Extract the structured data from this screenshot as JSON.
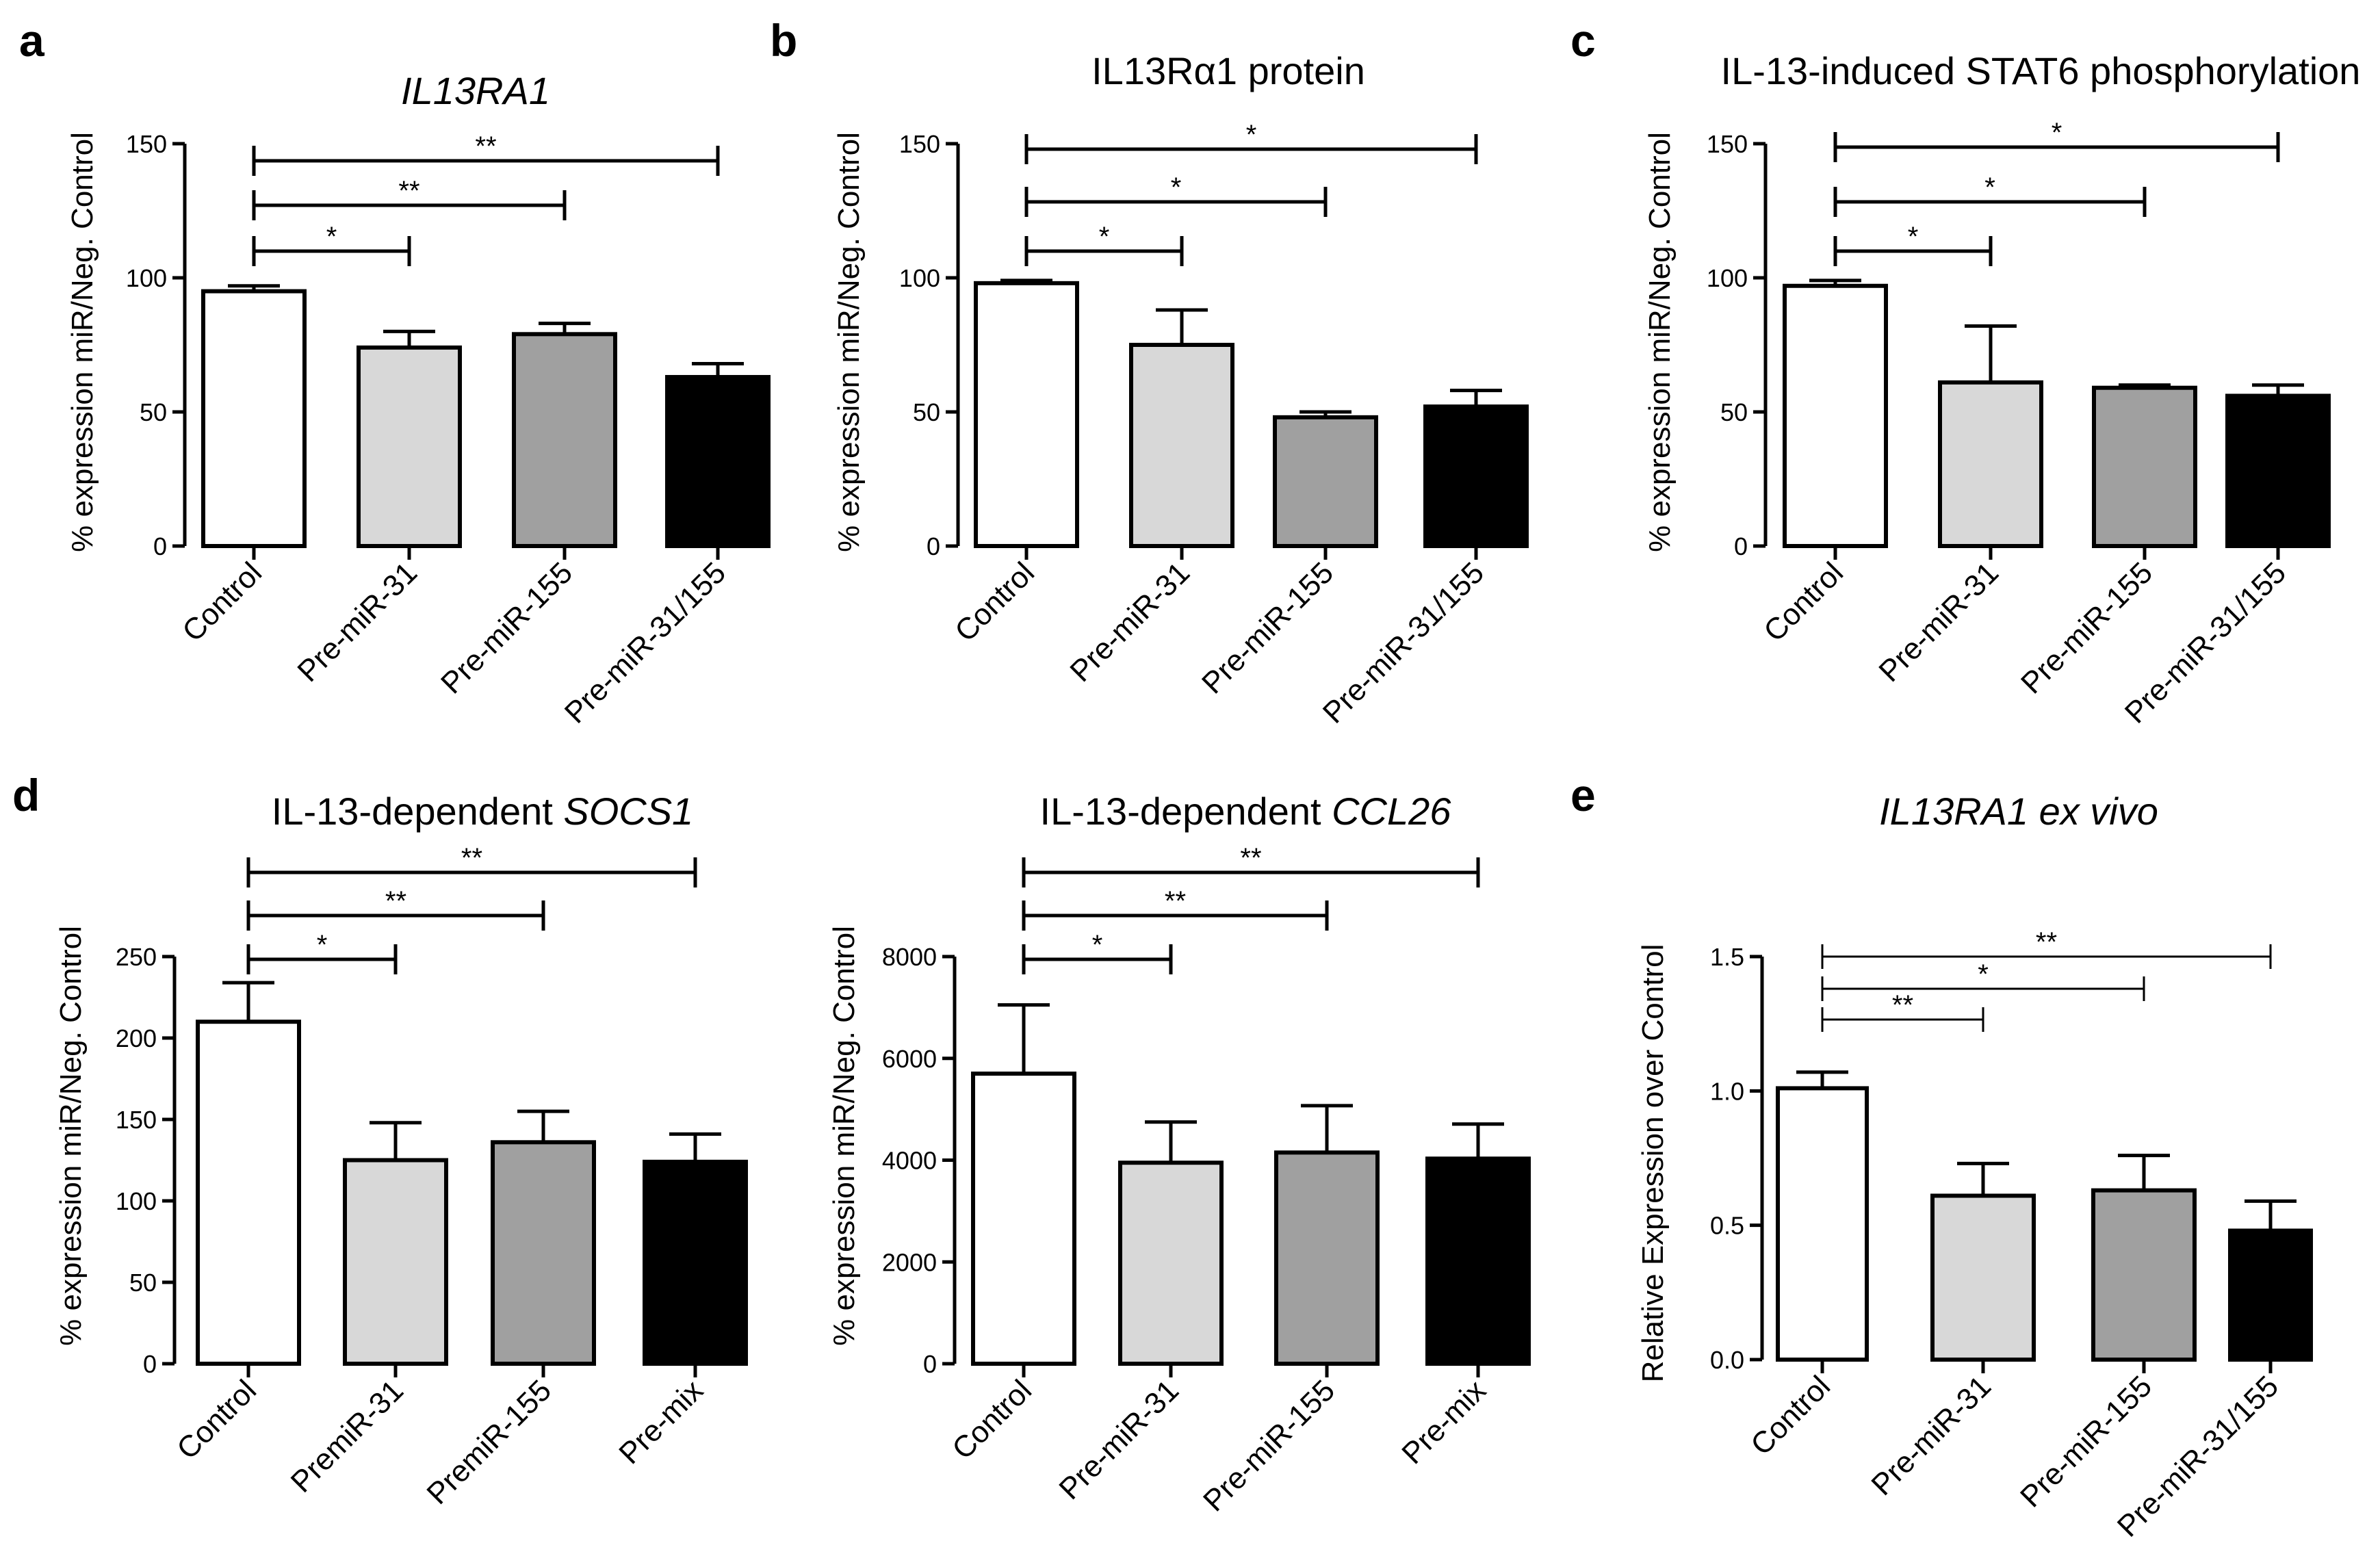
{
  "chart_data": [
    {
      "panel": "a",
      "type": "bar",
      "title": "IL13RA1",
      "title_parts": [
        {
          "text": "IL13RA1",
          "italic": true
        }
      ],
      "ylabel": "% expression miR/Neg. Control",
      "categories": [
        "Control",
        "Pre-miR-31",
        "Pre-miR-155",
        "Pre-miR-31/155"
      ],
      "values": [
        95,
        74,
        79,
        63
      ],
      "errors": [
        2,
        6,
        4,
        5
      ],
      "fills": [
        "#ffffff",
        "#d8d8d8",
        "#a0a0a0",
        "#000000"
      ],
      "ylim": [
        0,
        150
      ],
      "yticks": [
        0,
        50,
        100,
        150
      ],
      "tick_labels": [
        "0",
        "50",
        "100",
        "150"
      ],
      "significance": [
        {
          "from": 0,
          "to": 1,
          "label": "*"
        },
        {
          "from": 0,
          "to": 2,
          "label": "**"
        },
        {
          "from": 0,
          "to": 3,
          "label": "**"
        }
      ]
    },
    {
      "panel": "b",
      "type": "bar",
      "title": "IL13Rα1 protein",
      "title_parts": [
        {
          "text": "IL13Rα1 protein",
          "italic": false
        }
      ],
      "ylabel": "% expression miR/Neg. Control",
      "categories": [
        "Control",
        "Pre-miR-31",
        "Pre-miR-155",
        "Pre-miR-31/155"
      ],
      "values": [
        98,
        75,
        48,
        52
      ],
      "errors": [
        1,
        13,
        2,
        6
      ],
      "fills": [
        "#ffffff",
        "#d8d8d8",
        "#a0a0a0",
        "#000000"
      ],
      "ylim": [
        0,
        150
      ],
      "yticks": [
        0,
        50,
        100,
        150
      ],
      "tick_labels": [
        "0",
        "50",
        "100",
        "150"
      ],
      "significance": [
        {
          "from": 0,
          "to": 1,
          "label": "*"
        },
        {
          "from": 0,
          "to": 2,
          "label": "*"
        },
        {
          "from": 0,
          "to": 3,
          "label": "*"
        }
      ]
    },
    {
      "panel": "c",
      "type": "bar",
      "title": "IL-13-induced STAT6 phosphorylation",
      "title_parts": [
        {
          "text": "IL-13-induced STAT6 phosphorylation",
          "italic": false
        }
      ],
      "ylabel": "% expression miR/Neg. Control",
      "categories": [
        "Control",
        "Pre-miR-31",
        "Pre-miR-155",
        "Pre-miR-31/155"
      ],
      "values": [
        97,
        61,
        59,
        56
      ],
      "errors": [
        2,
        21,
        1,
        4
      ],
      "fills": [
        "#ffffff",
        "#d8d8d8",
        "#a0a0a0",
        "#000000"
      ],
      "ylim": [
        0,
        150
      ],
      "yticks": [
        0,
        50,
        100,
        150
      ],
      "tick_labels": [
        "0",
        "50",
        "100",
        "150"
      ],
      "significance": [
        {
          "from": 0,
          "to": 1,
          "label": "*"
        },
        {
          "from": 0,
          "to": 2,
          "label": "*"
        },
        {
          "from": 0,
          "to": 3,
          "label": "*"
        }
      ]
    },
    {
      "panel": "d",
      "type": "bar",
      "title": "IL-13-dependent SOCS1",
      "title_parts": [
        {
          "text": "IL-13-dependent ",
          "italic": false
        },
        {
          "text": "SOCS1",
          "italic": true
        }
      ],
      "ylabel": "% expression miR/Neg. Control",
      "categories": [
        "Control",
        "PremiR-31",
        "PremiR-155",
        "Pre-mix"
      ],
      "values": [
        210,
        125,
        136,
        124
      ],
      "errors": [
        24,
        23,
        19,
        17
      ],
      "fills": [
        "#ffffff",
        "#d8d8d8",
        "#a0a0a0",
        "#000000"
      ],
      "ylim": [
        0,
        250
      ],
      "yticks": [
        0,
        50,
        100,
        150,
        200,
        250
      ],
      "tick_labels": [
        "0",
        "50",
        "100",
        "150",
        "200",
        "250"
      ],
      "significance": [
        {
          "from": 0,
          "to": 1,
          "label": "*"
        },
        {
          "from": 0,
          "to": 2,
          "label": "**"
        },
        {
          "from": 0,
          "to": 3,
          "label": "**"
        }
      ]
    },
    {
      "panel": "",
      "type": "bar",
      "title": "IL-13-dependent CCL26",
      "title_parts": [
        {
          "text": "IL-13-dependent ",
          "italic": false
        },
        {
          "text": "CCL26",
          "italic": true
        }
      ],
      "ylabel": "% expression miR/Neg. Control",
      "categories": [
        "Control",
        "Pre-miR-31",
        "Pre-miR-155",
        "Pre-mix"
      ],
      "values": [
        5700,
        3950,
        4150,
        4030
      ],
      "errors": [
        1350,
        800,
        920,
        680
      ],
      "fills": [
        "#ffffff",
        "#d8d8d8",
        "#a0a0a0",
        "#000000"
      ],
      "ylim": [
        0,
        8000
      ],
      "yticks": [
        0,
        2000,
        4000,
        6000,
        8000
      ],
      "tick_labels": [
        "0",
        "2000",
        "4000",
        "6000",
        "8000"
      ],
      "significance": [
        {
          "from": 0,
          "to": 1,
          "label": "*"
        },
        {
          "from": 0,
          "to": 2,
          "label": "**"
        },
        {
          "from": 0,
          "to": 3,
          "label": "**"
        }
      ]
    },
    {
      "panel": "e",
      "type": "bar",
      "title": "IL13RA1 ex vivo",
      "title_parts": [
        {
          "text": "IL13RA1 ex vivo",
          "italic": true
        }
      ],
      "ylabel": "Relative Expression over Control",
      "categories": [
        "Control",
        "Pre-miR-31",
        "Pre-miR-155",
        "Pre-miR-31/155"
      ],
      "values": [
        1.01,
        0.61,
        0.63,
        0.48
      ],
      "errors": [
        0.06,
        0.12,
        0.13,
        0.11
      ],
      "fills": [
        "#ffffff",
        "#d8d8d8",
        "#a0a0a0",
        "#000000"
      ],
      "ylim": [
        0,
        1.5
      ],
      "yticks": [
        0,
        0.5,
        1.0,
        1.5
      ],
      "tick_labels": [
        "0.0",
        "0.5",
        "1.0",
        "1.5"
      ],
      "significance": [
        {
          "from": 0,
          "to": 1,
          "label": "**"
        },
        {
          "from": 0,
          "to": 2,
          "label": "*"
        },
        {
          "from": 0,
          "to": 3,
          "label": "**"
        }
      ]
    }
  ]
}
